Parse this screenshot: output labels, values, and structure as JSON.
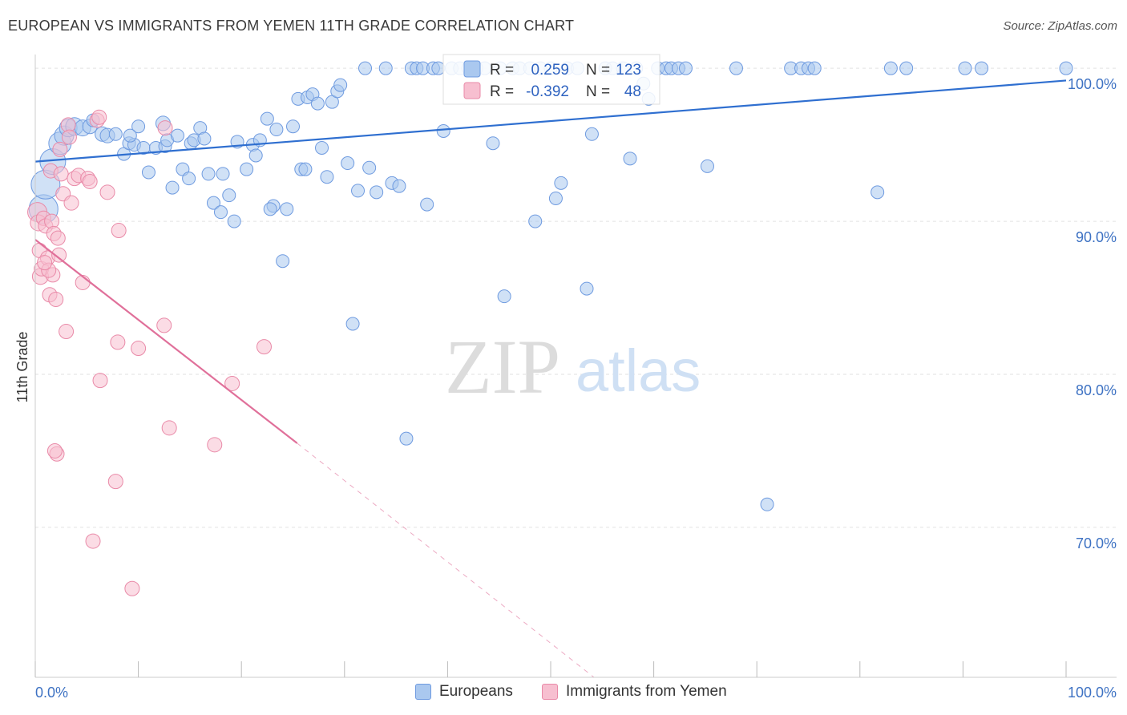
{
  "header": {
    "title": "EUROPEAN VS IMMIGRANTS FROM YEMEN 11TH GRADE CORRELATION CHART",
    "source": "Source: ZipAtlas.com"
  },
  "watermark": {
    "zip": "ZIP",
    "atlas": "atlas"
  },
  "legend_box": {
    "rows": [
      {
        "r_label": "R =",
        "r_value": "0.259",
        "n_label": "N =",
        "n_value": "123"
      },
      {
        "r_label": "R =",
        "r_value": "-0.392",
        "n_label": "N =",
        "n_value": "48"
      }
    ]
  },
  "bottom_legend": {
    "items": [
      {
        "label": "Europeans"
      },
      {
        "label": "Immigrants from Yemen"
      }
    ]
  },
  "colors": {
    "blue_fill": "#aac8ef",
    "blue_stroke": "#6f9be0",
    "blue_line": "#2f6fd0",
    "pink_fill": "#f7bfd0",
    "pink_stroke": "#e98aa8",
    "pink_line": "#e0709a",
    "tick_text": "#3e72c3",
    "grid": "#e2e2e2"
  },
  "chart_data": {
    "type": "scatter",
    "title": "EUROPEAN VS IMMIGRANTS FROM YEMEN 11TH GRADE CORRELATION CHART",
    "xlabel": "",
    "ylabel": "11th Grade",
    "xlim": [
      0,
      100
    ],
    "ylim": [
      60.2,
      100.9
    ],
    "x_tick_labels": [
      {
        "value": 0,
        "label": "0.0%"
      },
      {
        "value": 100,
        "label": "100.0%"
      }
    ],
    "y_tick_labels": [
      {
        "value": 100,
        "label": "100.0%"
      },
      {
        "value": 90,
        "label": "90.0%"
      },
      {
        "value": 80,
        "label": "80.0%"
      },
      {
        "value": 70,
        "label": "70.0%"
      }
    ],
    "grid": true,
    "legend": "top-center",
    "series": [
      {
        "name": "Europeans",
        "r": 0.259,
        "n": 123,
        "trend": {
          "x": [
            0,
            100
          ],
          "y": [
            93.9,
            99.2
          ]
        },
        "points": [
          [
            0.8,
            90.8,
            18
          ],
          [
            1.0,
            92.4,
            18
          ],
          [
            1.7,
            93.9,
            16
          ],
          [
            2.4,
            95.1,
            14
          ],
          [
            2.8,
            95.6,
            12
          ],
          [
            3.2,
            96.1,
            11
          ],
          [
            3.8,
            96.2,
            11
          ],
          [
            4.6,
            96.1,
            10
          ],
          [
            5.3,
            96.2,
            9
          ],
          [
            5.6,
            96.6,
            8
          ],
          [
            6.5,
            95.7,
            9
          ],
          [
            7.0,
            95.6,
            9
          ],
          [
            7.8,
            95.7,
            8
          ],
          [
            8.6,
            94.4,
            8
          ],
          [
            9.1,
            95.1,
            8
          ],
          [
            9.6,
            95.0,
            8
          ],
          [
            10.0,
            96.2,
            8
          ],
          [
            10.5,
            94.8,
            8
          ],
          [
            11.0,
            93.2,
            8
          ],
          [
            11.7,
            94.8,
            8
          ],
          [
            12.4,
            96.4,
            9
          ],
          [
            12.6,
            94.9,
            8
          ],
          [
            12.8,
            95.3,
            8
          ],
          [
            13.3,
            92.2,
            8
          ],
          [
            13.8,
            95.6,
            8
          ],
          [
            14.3,
            93.4,
            8
          ],
          [
            15.1,
            95.1,
            8
          ],
          [
            15.4,
            95.3,
            8
          ],
          [
            16.0,
            96.1,
            8
          ],
          [
            16.4,
            95.4,
            8
          ],
          [
            16.8,
            93.1,
            8
          ],
          [
            17.3,
            91.2,
            8
          ],
          [
            18.0,
            90.6,
            8
          ],
          [
            18.2,
            93.1,
            8
          ],
          [
            18.8,
            91.7,
            8
          ],
          [
            19.3,
            90.0,
            8
          ],
          [
            19.6,
            95.2,
            8
          ],
          [
            20.5,
            93.4,
            8
          ],
          [
            21.1,
            95.0,
            8
          ],
          [
            21.4,
            94.3,
            8
          ],
          [
            21.8,
            95.3,
            8
          ],
          [
            22.5,
            96.7,
            8
          ],
          [
            23.1,
            91.0,
            8
          ],
          [
            23.4,
            96.0,
            8
          ],
          [
            24.0,
            87.4,
            8
          ],
          [
            24.4,
            90.8,
            8
          ],
          [
            25.0,
            96.2,
            8
          ],
          [
            25.5,
            98.0,
            8
          ],
          [
            25.8,
            93.4,
            8
          ],
          [
            26.4,
            98.1,
            8
          ],
          [
            26.9,
            98.3,
            8
          ],
          [
            27.4,
            97.7,
            8
          ],
          [
            27.8,
            94.8,
            8
          ],
          [
            28.3,
            92.9,
            8
          ],
          [
            28.8,
            97.8,
            8
          ],
          [
            29.3,
            98.5,
            8
          ],
          [
            29.6,
            98.9,
            8
          ],
          [
            30.3,
            93.8,
            8
          ],
          [
            30.8,
            83.3,
            8
          ],
          [
            31.3,
            92.0,
            8
          ],
          [
            32.0,
            100.0,
            8
          ],
          [
            32.4,
            93.5,
            8
          ],
          [
            33.1,
            91.9,
            8
          ],
          [
            34.0,
            100.0,
            8
          ],
          [
            34.6,
            92.5,
            8
          ],
          [
            35.3,
            92.3,
            8
          ],
          [
            36.0,
            75.8,
            8
          ],
          [
            36.5,
            100.0,
            8
          ],
          [
            37.0,
            100.0,
            8
          ],
          [
            37.6,
            100.0,
            8
          ],
          [
            38.0,
            91.1,
            8
          ],
          [
            38.6,
            100.0,
            8
          ],
          [
            39.1,
            100.0,
            8
          ],
          [
            39.6,
            95.9,
            8
          ],
          [
            40.4,
            100.0,
            8
          ],
          [
            41.2,
            100.0,
            8
          ],
          [
            42.0,
            100.0,
            8
          ],
          [
            42.8,
            100.0,
            8
          ],
          [
            43.6,
            100.0,
            8
          ],
          [
            44.4,
            95.1,
            8
          ],
          [
            45.1,
            100.0,
            8
          ],
          [
            45.5,
            85.1,
            8
          ],
          [
            46.3,
            100.0,
            8
          ],
          [
            47.0,
            100.0,
            8
          ],
          [
            48.0,
            100.0,
            8
          ],
          [
            49.0,
            100.0,
            8
          ],
          [
            50.0,
            100.0,
            8
          ],
          [
            50.5,
            91.5,
            8
          ],
          [
            51.0,
            92.5,
            8
          ],
          [
            51.6,
            100.0,
            8
          ],
          [
            52.6,
            100.0,
            8
          ],
          [
            53.5,
            85.6,
            8
          ],
          [
            54.0,
            95.7,
            8
          ],
          [
            55.3,
            100.0,
            8
          ],
          [
            56.0,
            100.0,
            8
          ],
          [
            57.0,
            100.0,
            8
          ],
          [
            57.7,
            94.1,
            8
          ],
          [
            58.3,
            100.0,
            8
          ],
          [
            59.0,
            99.0,
            8
          ],
          [
            59.5,
            98.0,
            8
          ],
          [
            60.4,
            100.0,
            8
          ],
          [
            61.2,
            100.0,
            8
          ],
          [
            61.7,
            100.0,
            8
          ],
          [
            62.4,
            100.0,
            8
          ],
          [
            63.1,
            100.0,
            8
          ],
          [
            65.2,
            93.6,
            8
          ],
          [
            68.0,
            100.0,
            8
          ],
          [
            71.0,
            71.5,
            8
          ],
          [
            73.3,
            100.0,
            8
          ],
          [
            74.3,
            100.0,
            8
          ],
          [
            75.0,
            100.0,
            8
          ],
          [
            75.6,
            100.0,
            8
          ],
          [
            81.7,
            91.9,
            8
          ],
          [
            83.0,
            100.0,
            8
          ],
          [
            84.5,
            100.0,
            8
          ],
          [
            90.2,
            100.0,
            8
          ],
          [
            91.8,
            100.0,
            8
          ],
          [
            100.0,
            100.0,
            8
          ],
          [
            48.5,
            90.0,
            8
          ],
          [
            26.2,
            93.4,
            8
          ],
          [
            22.8,
            90.8,
            8
          ],
          [
            14.9,
            92.8,
            8
          ],
          [
            9.2,
            95.6,
            8
          ]
        ]
      },
      {
        "name": "Immigrants from Yemen",
        "r": -0.392,
        "n": 48,
        "trend": {
          "x": [
            0,
            25.4
          ],
          "y": [
            88.8,
            75.5
          ]
        },
        "trend_dashed": {
          "x": [
            25.4,
            54.2
          ],
          "y": [
            75.5,
            60.2
          ]
        },
        "points": [
          [
            0.2,
            90.6,
            12
          ],
          [
            0.3,
            89.9,
            10
          ],
          [
            0.4,
            88.1,
            9
          ],
          [
            0.5,
            86.4,
            10
          ],
          [
            0.6,
            86.9,
            9
          ],
          [
            0.8,
            90.2,
            9
          ],
          [
            1.0,
            89.7,
            9
          ],
          [
            1.2,
            87.6,
            9
          ],
          [
            1.4,
            85.2,
            9
          ],
          [
            1.5,
            93.3,
            9
          ],
          [
            1.6,
            90.0,
            9
          ],
          [
            1.7,
            86.5,
            9
          ],
          [
            1.8,
            89.2,
            9
          ],
          [
            2.0,
            84.9,
            9
          ],
          [
            2.1,
            74.8,
            9
          ],
          [
            2.2,
            88.9,
            9
          ],
          [
            2.4,
            94.7,
            9
          ],
          [
            2.5,
            93.1,
            9
          ],
          [
            2.7,
            91.8,
            9
          ],
          [
            3.0,
            82.8,
            9
          ],
          [
            3.2,
            96.3,
            9
          ],
          [
            3.3,
            95.5,
            9
          ],
          [
            3.5,
            91.2,
            9
          ],
          [
            3.8,
            92.8,
            9
          ],
          [
            4.2,
            93.0,
            9
          ],
          [
            4.6,
            86.0,
            9
          ],
          [
            5.1,
            92.8,
            9
          ],
          [
            5.3,
            92.6,
            9
          ],
          [
            5.6,
            69.1,
            9
          ],
          [
            6.0,
            96.6,
            9
          ],
          [
            6.2,
            96.8,
            9
          ],
          [
            6.3,
            79.6,
            9
          ],
          [
            7.0,
            91.9,
            9
          ],
          [
            7.8,
            73.0,
            9
          ],
          [
            8.0,
            82.1,
            9
          ],
          [
            8.1,
            89.4,
            9
          ],
          [
            9.4,
            66.0,
            9
          ],
          [
            10.0,
            81.7,
            9
          ],
          [
            12.5,
            83.2,
            9
          ],
          [
            12.6,
            96.1,
            9
          ],
          [
            13.0,
            76.5,
            9
          ],
          [
            17.4,
            75.4,
            9
          ],
          [
            19.1,
            79.4,
            9
          ],
          [
            22.2,
            81.8,
            9
          ],
          [
            1.3,
            86.8,
            9
          ],
          [
            0.9,
            87.3,
            9
          ],
          [
            1.9,
            75.0,
            9
          ],
          [
            2.3,
            87.8,
            9
          ]
        ]
      }
    ]
  }
}
